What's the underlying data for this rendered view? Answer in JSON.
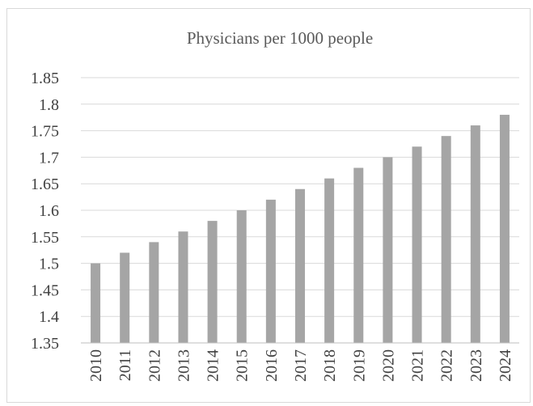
{
  "chart_data": {
    "type": "bar",
    "title": "Physicians per 1000 people",
    "xlabel": "",
    "ylabel": "",
    "categories": [
      "2010",
      "2011",
      "2012",
      "2013",
      "2014",
      "2015",
      "2016",
      "2017",
      "2018",
      "2019",
      "2020",
      "2021",
      "2022",
      "2023",
      "2024"
    ],
    "values": [
      1.5,
      1.52,
      1.54,
      1.56,
      1.58,
      1.6,
      1.62,
      1.64,
      1.66,
      1.68,
      1.7,
      1.72,
      1.74,
      1.76,
      1.78
    ],
    "ylim": [
      1.35,
      1.85
    ],
    "yticks": [
      "1.35",
      "1.4",
      "1.45",
      "1.5",
      "1.55",
      "1.6",
      "1.65",
      "1.7",
      "1.75",
      "1.8",
      "1.85"
    ],
    "grid": true,
    "legend": "none",
    "bar_color": "#a5a5a5"
  }
}
